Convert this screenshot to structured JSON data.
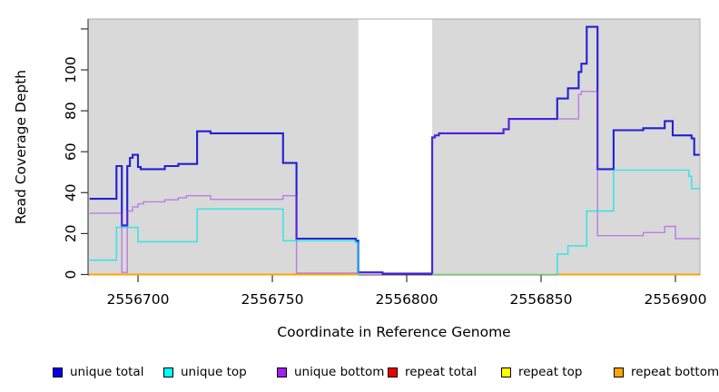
{
  "chart_data": {
    "type": "line",
    "step": true,
    "title": "",
    "xlabel": "Coordinate in Reference Genome",
    "ylabel": "Read Coverage Depth",
    "xlim": [
      2556682,
      2556909
    ],
    "ylim": [
      0,
      125
    ],
    "grid": false,
    "plot_background": "#D9D9D9",
    "x_ticks": [
      {
        "value": 2556700,
        "label": "2556700"
      },
      {
        "value": 2556750,
        "label": "2556750"
      },
      {
        "value": 2556800,
        "label": "2556800"
      },
      {
        "value": 2556850,
        "label": "2556850"
      },
      {
        "value": 2556900,
        "label": "2556900"
      }
    ],
    "y_ticks": [
      {
        "value": 0,
        "label": "0"
      },
      {
        "value": 20,
        "label": "20"
      },
      {
        "value": 40,
        "label": "40"
      },
      {
        "value": 60,
        "label": "60"
      },
      {
        "value": 80,
        "label": "80"
      },
      {
        "value": 100,
        "label": "100"
      },
      {
        "value": 120,
        "label": ""
      }
    ],
    "uncovered_region": {
      "from": 2556782,
      "to": 2556809.5,
      "color": "#FFFFFF"
    },
    "zero_overlap_segment": {
      "from": 2556809.5,
      "to": 2556855.5,
      "value": 0,
      "color": "#7CC87C"
    },
    "draw_order": [
      "repeat total",
      "repeat top",
      "repeat bottom",
      "unique total",
      "unique bottom",
      "unique top"
    ],
    "series": [
      {
        "name": "unique total",
        "swatch_color": "#0000EE",
        "line_color": "#2121D3",
        "width": 2.1,
        "opacity": 1,
        "gaps": [],
        "points": [
          [
            2556682,
            37
          ],
          [
            2556692,
            53
          ],
          [
            2556694,
            24
          ],
          [
            2556696,
            53
          ],
          [
            2556697,
            57
          ],
          [
            2556698,
            58.5
          ],
          [
            2556700,
            52.5
          ],
          [
            2556701,
            51.5
          ],
          [
            2556710,
            53
          ],
          [
            2556715,
            54
          ],
          [
            2556722,
            70
          ],
          [
            2556727,
            69
          ],
          [
            2556754,
            54.5
          ],
          [
            2556759,
            17.5
          ],
          [
            2556781,
            16.5
          ],
          [
            2556782,
            1
          ],
          [
            2556791,
            0.4
          ],
          [
            2556809.5,
            67
          ],
          [
            2556810.5,
            68
          ],
          [
            2556812,
            69
          ],
          [
            2556836,
            71
          ],
          [
            2556838,
            76
          ],
          [
            2556856,
            86
          ],
          [
            2556860,
            91
          ],
          [
            2556864,
            99
          ],
          [
            2556865,
            103
          ],
          [
            2556867,
            121
          ],
          [
            2556871,
            51.5
          ],
          [
            2556877,
            70.5
          ],
          [
            2556888,
            71.5
          ],
          [
            2556896,
            75
          ],
          [
            2556899,
            68
          ],
          [
            2556906,
            66.5
          ],
          [
            2556907,
            58.5
          ]
        ]
      },
      {
        "name": "unique top",
        "swatch_color": "#00FFFF",
        "line_color": "#00E5E5",
        "width": 1.6,
        "opacity": 0.7,
        "gaps": [
          [
            2556782.5,
            2556855.5
          ]
        ],
        "points": [
          [
            2556682,
            7
          ],
          [
            2556692,
            23
          ],
          [
            2556700,
            16
          ],
          [
            2556722,
            32
          ],
          [
            2556754,
            16.5
          ],
          [
            2556781,
            15.5
          ],
          [
            2556782,
            0
          ],
          [
            2556856,
            10
          ],
          [
            2556860,
            14
          ],
          [
            2556867,
            31
          ],
          [
            2556877,
            51
          ],
          [
            2556905,
            48
          ],
          [
            2556906,
            42
          ]
        ]
      },
      {
        "name": "unique bottom",
        "swatch_color": "#A020F0",
        "line_color": "#A020F0",
        "width": 1.4,
        "opacity": 0.5,
        "gaps": [],
        "points": [
          [
            2556682,
            30
          ],
          [
            2556694,
            1
          ],
          [
            2556696,
            31
          ],
          [
            2556698,
            33
          ],
          [
            2556700,
            34.5
          ],
          [
            2556702,
            35.5
          ],
          [
            2556710,
            36.5
          ],
          [
            2556715,
            37.5
          ],
          [
            2556718,
            38.5
          ],
          [
            2556727,
            36.7
          ],
          [
            2556754,
            38.5
          ],
          [
            2556759,
            0.7
          ],
          [
            2556809.5,
            67
          ],
          [
            2556810.5,
            68
          ],
          [
            2556812,
            69
          ],
          [
            2556836,
            71
          ],
          [
            2556838,
            76
          ],
          [
            2556864,
            88
          ],
          [
            2556865,
            89.5
          ],
          [
            2556871,
            19
          ],
          [
            2556888,
            20.5
          ],
          [
            2556896,
            23.5
          ],
          [
            2556900,
            17.5
          ]
        ]
      },
      {
        "name": "repeat total",
        "swatch_color": "#EE0000",
        "line_color": "#DD0000",
        "width": 1.5,
        "opacity": 1,
        "gaps": [
          [
            2556782,
            2556856
          ]
        ],
        "points": [
          [
            2556682,
            0
          ]
        ]
      },
      {
        "name": "repeat top",
        "swatch_color": "#FFFF00",
        "line_color": "#FFFF00",
        "width": 1.5,
        "opacity": 1,
        "gaps": [
          [
            2556782,
            2556856
          ]
        ],
        "points": [
          [
            2556682,
            0
          ]
        ]
      },
      {
        "name": "repeat bottom",
        "swatch_color": "#FFA500",
        "line_color": "#FFA500",
        "width": 2,
        "opacity": 1,
        "gaps": [
          [
            2556782,
            2556856
          ]
        ],
        "points": [
          [
            2556682,
            0
          ]
        ]
      }
    ]
  },
  "legend": {
    "items": [
      {
        "label": "unique total",
        "color": "#0000EE"
      },
      {
        "label": "unique top",
        "color": "#00FFFF"
      },
      {
        "label": "unique bottom",
        "color": "#A020F0"
      },
      {
        "label": "repeat total",
        "color": "#EE0000"
      },
      {
        "label": "repeat top",
        "color": "#FFFF00"
      },
      {
        "label": "repeat bottom",
        "color": "#FFA500"
      }
    ]
  }
}
